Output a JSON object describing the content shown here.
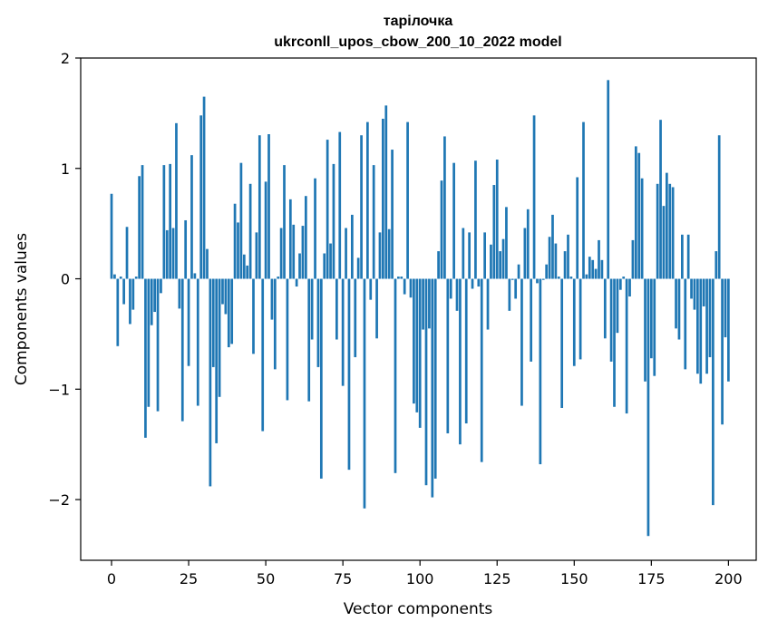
{
  "chart_data": {
    "type": "bar",
    "title": "тарілочка",
    "subtitle": "ukrconll_upos_cbow_200_10_2022 model",
    "xlabel": "Vector components",
    "ylabel": "Components values",
    "xlim": [
      -10,
      209
    ],
    "ylim": [
      -2.55,
      2.0
    ],
    "xticks": [
      0,
      25,
      50,
      75,
      100,
      125,
      150,
      175,
      200
    ],
    "yticks": [
      -2,
      -1,
      0,
      1,
      2
    ],
    "ytick_labels": [
      "−2",
      "−1",
      "0",
      "1",
      "2"
    ],
    "color": "#1f77b4",
    "grid": false,
    "values": [
      0.77,
      0.04,
      -0.61,
      0.02,
      -0.23,
      0.47,
      -0.41,
      -0.28,
      0.02,
      0.93,
      1.03,
      -1.44,
      -1.16,
      -0.42,
      -0.3,
      -1.2,
      -0.13,
      1.03,
      0.44,
      1.04,
      0.46,
      1.41,
      -0.27,
      -1.29,
      0.53,
      -0.79,
      1.12,
      0.05,
      -1.15,
      1.48,
      1.65,
      0.27,
      -1.88,
      -0.8,
      -1.49,
      -1.07,
      -0.23,
      -0.32,
      -0.62,
      -0.59,
      0.68,
      0.51,
      1.05,
      0.22,
      0.12,
      0.86,
      -0.68,
      0.42,
      1.3,
      -1.38,
      0.88,
      1.31,
      -0.37,
      -0.82,
      0.02,
      0.46,
      1.03,
      -1.1,
      0.72,
      0.49,
      -0.07,
      0.23,
      0.48,
      0.75,
      -1.11,
      -0.55,
      0.91,
      -0.8,
      -1.81,
      0.23,
      1.26,
      0.32,
      1.04,
      -0.55,
      1.33,
      -0.97,
      0.46,
      -1.73,
      0.58,
      -0.71,
      0.19,
      1.3,
      -2.08,
      1.42,
      -0.19,
      1.03,
      -0.54,
      0.42,
      1.45,
      1.57,
      0.45,
      1.17,
      -1.76,
      0.02,
      0.02,
      -0.14,
      1.42,
      -0.17,
      -1.13,
      -1.21,
      -1.35,
      -0.46,
      -1.87,
      -0.45,
      -1.98,
      -1.81,
      0.25,
      0.89,
      1.29,
      -1.4,
      -0.18,
      1.05,
      -0.29,
      -1.5,
      0.46,
      -1.31,
      0.42,
      -0.09,
      1.07,
      -0.07,
      -1.66,
      0.42,
      -0.46,
      0.31,
      0.85,
      1.08,
      0.25,
      0.36,
      0.65,
      -0.29,
      -0.01,
      -0.18,
      0.13,
      -1.15,
      0.46,
      0.63,
      -0.75,
      1.48,
      -0.04,
      -1.68,
      -0.01,
      0.13,
      0.38,
      0.58,
      0.32,
      0.02,
      -1.17,
      0.25,
      0.4,
      0.02,
      -0.79,
      0.92,
      -0.73,
      1.42,
      0.04,
      0.2,
      0.17,
      0.09,
      0.35,
      0.17,
      -0.54,
      1.8,
      -0.75,
      -1.16,
      -0.49,
      -0.1,
      0.02,
      -1.22,
      -0.16,
      0.35,
      1.2,
      1.14,
      0.91,
      -0.93,
      -2.33,
      -0.72,
      -0.88,
      0.86,
      1.44,
      0.66,
      0.96,
      0.86,
      0.83,
      -0.45,
      -0.55,
      0.4,
      -0.82,
      0.4,
      -0.18,
      -0.28,
      -0.86,
      -0.95,
      -0.25,
      -0.86,
      -0.71,
      -2.05,
      0.25,
      1.3,
      -1.32,
      -0.53,
      -0.93
    ]
  }
}
